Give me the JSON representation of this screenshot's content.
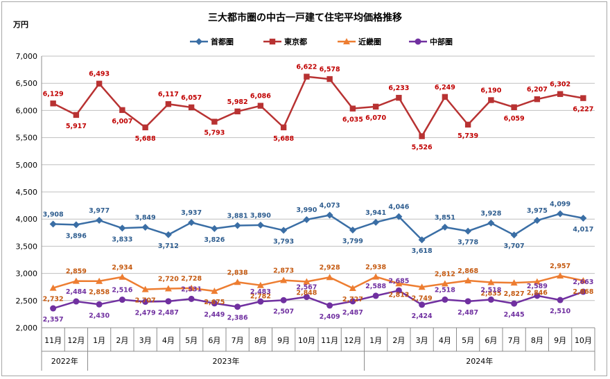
{
  "chart_data": {
    "type": "line",
    "title": "三大都市圏の中古一戸建て住宅平均価格推移",
    "ylabel": "万円",
    "ylim": [
      2000,
      7000
    ],
    "yticks": [
      "2,000",
      "2,500",
      "3,000",
      "3,500",
      "4,000",
      "4,500",
      "5,000",
      "5,500",
      "6,000",
      "6,500",
      "7,000"
    ],
    "categories": [
      "11月",
      "12月",
      "1月",
      "2月",
      "3月",
      "4月",
      "5月",
      "6月",
      "7月",
      "8月",
      "9月",
      "10月",
      "11月",
      "12月",
      "1月",
      "2月",
      "3月",
      "4月",
      "5月",
      "6月",
      "7月",
      "8月",
      "9月",
      "10月"
    ],
    "year_groups": [
      {
        "label": "2022年",
        "start": 0,
        "end": 1
      },
      {
        "label": "2023年",
        "start": 2,
        "end": 13
      },
      {
        "label": "2024年",
        "start": 14,
        "end": 23
      }
    ],
    "legend_position": "top",
    "grid": true,
    "series": [
      {
        "name": "首都圏",
        "color": "#3a6ea5",
        "label_color": "#2e5d8f",
        "marker": "diamond",
        "values": [
          3908,
          3896,
          3977,
          3833,
          3849,
          3712,
          3937,
          3826,
          3881,
          3890,
          3793,
          3990,
          4073,
          3799,
          3941,
          4046,
          3618,
          3851,
          3778,
          3928,
          3707,
          3975,
          4099,
          4017
        ],
        "labels": [
          "3,908",
          "3,896",
          "3,977",
          "3,833",
          "3,849",
          "3,712",
          "3,937",
          "3,826",
          "3,881",
          "3,890",
          "3,793",
          "3,990",
          "4,073",
          "3,799",
          "3,941",
          "4,046",
          "3,618",
          "3,851",
          "3,778",
          "3,928",
          "3,707",
          "3,975",
          "4,099",
          "4,017"
        ]
      },
      {
        "name": "東京都",
        "color": "#b83232",
        "label_color": "#c00000",
        "marker": "square",
        "values": [
          6129,
          5917,
          6493,
          6007,
          5688,
          6117,
          6057,
          5793,
          5982,
          6086,
          5688,
          6622,
          6578,
          6035,
          6070,
          6233,
          5526,
          6249,
          5739,
          6190,
          6059,
          6207,
          6302,
          6227
        ],
        "labels": [
          "6,129",
          "5,917",
          "6,493",
          "6,007",
          "5,688",
          "6,117",
          "6,057",
          "5,793",
          "5,982",
          "6,086",
          "5,688",
          "6,622",
          "6,578",
          "6,035",
          "6,070",
          "6,233",
          "5,526",
          "6,249",
          "5,739",
          "6,190",
          "6,059",
          "6,207",
          "6,302",
          "6,227"
        ]
      },
      {
        "name": "近畿圏",
        "color": "#ed7d31",
        "label_color": "#c55a11",
        "marker": "triangle",
        "values": [
          2732,
          2859,
          2858,
          2934,
          2707,
          2720,
          2728,
          2675,
          2838,
          2782,
          2873,
          2848,
          2928,
          2727,
          2938,
          2813,
          2749,
          2812,
          2868,
          2835,
          2827,
          2846,
          2957,
          2868
        ],
        "labels": [
          "2,732",
          "2,859",
          "2,858",
          "2,934",
          "2,707",
          "2,720",
          "2,728",
          "2,675",
          "2,838",
          "2,782",
          "2,873",
          "2,848",
          "2,928",
          "2,727",
          "2,938",
          "2,813",
          "2,749",
          "2,812",
          "2,868",
          "2,835",
          "2,827",
          "2,846",
          "2,957",
          "2,868"
        ]
      },
      {
        "name": "中部圏",
        "color": "#7030a0",
        "label_color": "#7030a0",
        "marker": "circle",
        "values": [
          2357,
          2484,
          2430,
          2516,
          2479,
          2487,
          2531,
          2449,
          2386,
          2483,
          2507,
          2567,
          2409,
          2487,
          2588,
          2685,
          2424,
          2518,
          2487,
          2518,
          2445,
          2589,
          2510,
          2663
        ],
        "labels": [
          "2,357",
          "2,484",
          "2,430",
          "2,516",
          "2,479",
          "2,487",
          "2,531",
          "2,449",
          "2,386",
          "2,483",
          "2,507",
          "2,567",
          "2,409",
          "2,487",
          "2,588",
          "2,685",
          "2,424",
          "2,518",
          "2,487",
          "2,518",
          "2,445",
          "2,589",
          "2,510",
          "2,663"
        ]
      }
    ]
  }
}
